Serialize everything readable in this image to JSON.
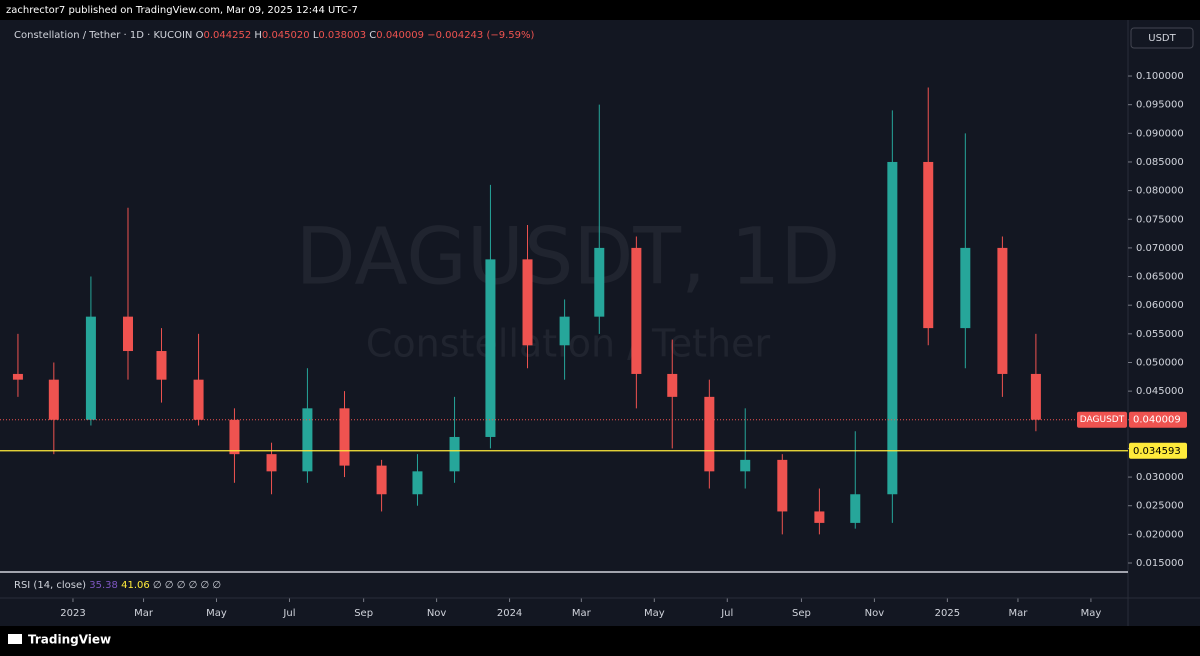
{
  "header": {
    "publisher": "zachrector7 published on TradingView.com, Mar 09, 2025 12:44 UTC-7",
    "footer": "TradingView",
    "currency_button": "USDT"
  },
  "chart_data": {
    "type": "candlestick",
    "title": "Constellation / Tether · 1D · KUCOIN",
    "legend": {
      "o_label": "O",
      "o": "0.044252",
      "h_label": "H",
      "h": "0.045020",
      "l_label": "L",
      "l": "0.038003",
      "c_label": "C",
      "c": "0.040009",
      "change": "−0.004243 (−9.59%)"
    },
    "watermark": {
      "symbol": "DAGUSDT, 1D",
      "name": "Constellation / Tether"
    },
    "x": [
      "2022-11",
      "2022-12",
      "2023-01",
      "2023-02",
      "2023-03",
      "2023-04",
      "2023-05",
      "2023-06",
      "2023-07",
      "2023-08",
      "2023-09",
      "2023-10",
      "2023-11",
      "2023-12",
      "2024-01",
      "2024-02",
      "2024-03",
      "2024-04",
      "2024-05",
      "2024-06",
      "2024-07",
      "2024-08",
      "2024-09",
      "2024-10",
      "2024-11",
      "2024-12",
      "2025-01",
      "2025-02",
      "2025-03"
    ],
    "open": [
      0.048,
      0.047,
      0.04,
      0.058,
      0.052,
      0.047,
      0.04,
      0.034,
      0.031,
      0.042,
      0.032,
      0.027,
      0.031,
      0.037,
      0.068,
      0.053,
      0.058,
      0.07,
      0.048,
      0.044,
      0.031,
      0.033,
      0.024,
      0.022,
      0.027,
      0.085,
      0.056,
      0.07,
      0.048
    ],
    "high": [
      0.055,
      0.05,
      0.065,
      0.077,
      0.056,
      0.055,
      0.042,
      0.036,
      0.049,
      0.045,
      0.033,
      0.034,
      0.044,
      0.081,
      0.074,
      0.061,
      0.095,
      0.072,
      0.054,
      0.047,
      0.042,
      0.034,
      0.028,
      0.038,
      0.094,
      0.098,
      0.09,
      0.072,
      0.055
    ],
    "low": [
      0.044,
      0.034,
      0.039,
      0.047,
      0.043,
      0.039,
      0.029,
      0.027,
      0.029,
      0.03,
      0.024,
      0.025,
      0.029,
      0.035,
      0.049,
      0.047,
      0.055,
      0.042,
      0.035,
      0.028,
      0.028,
      0.02,
      0.02,
      0.021,
      0.022,
      0.053,
      0.049,
      0.044,
      0.038
    ],
    "close": [
      0.047,
      0.04,
      0.058,
      0.052,
      0.047,
      0.04,
      0.034,
      0.031,
      0.042,
      0.032,
      0.027,
      0.031,
      0.037,
      0.068,
      0.053,
      0.058,
      0.07,
      0.048,
      0.044,
      0.031,
      0.033,
      0.024,
      0.022,
      0.027,
      0.085,
      0.056,
      0.07,
      0.048,
      0.040009
    ],
    "up_color": "#26a69a",
    "down_color": "#ef5350",
    "xlim": [
      "2022-11",
      "2025-06"
    ],
    "xticks": [
      {
        "value": "2023-01",
        "label": "2023"
      },
      {
        "value": "2023-03",
        "label": "Mar"
      },
      {
        "value": "2023-05",
        "label": "May"
      },
      {
        "value": "2023-07",
        "label": "Jul"
      },
      {
        "value": "2023-09",
        "label": "Sep"
      },
      {
        "value": "2023-11",
        "label": "Nov"
      },
      {
        "value": "2024-01",
        "label": "2024"
      },
      {
        "value": "2024-03",
        "label": "Mar"
      },
      {
        "value": "2024-05",
        "label": "May"
      },
      {
        "value": "2024-07",
        "label": "Jul"
      },
      {
        "value": "2024-09",
        "label": "Sep"
      },
      {
        "value": "2024-11",
        "label": "Nov"
      },
      {
        "value": "2025-01",
        "label": "2025"
      },
      {
        "value": "2025-03",
        "label": "Mar"
      },
      {
        "value": "2025-05",
        "label": "May"
      }
    ],
    "ylim": [
      0.01343,
      0.10943
    ],
    "yticks": [
      {
        "value": 0.015,
        "label": "0.015000"
      },
      {
        "value": 0.02,
        "label": "0.020000"
      },
      {
        "value": 0.025,
        "label": "0.025000"
      },
      {
        "value": 0.03,
        "label": "0.030000"
      },
      {
        "value": 0.035,
        "label": "0.035000"
      },
      {
        "value": 0.04,
        "label": "0.040000"
      },
      {
        "value": 0.045,
        "label": "0.045000"
      },
      {
        "value": 0.05,
        "label": "0.050000"
      },
      {
        "value": 0.055,
        "label": "0.055000"
      },
      {
        "value": 0.06,
        "label": "0.060000"
      },
      {
        "value": 0.065,
        "label": "0.065000"
      },
      {
        "value": 0.07,
        "label": "0.070000"
      },
      {
        "value": 0.075,
        "label": "0.075000"
      },
      {
        "value": 0.08,
        "label": "0.080000"
      },
      {
        "value": 0.085,
        "label": "0.085000"
      },
      {
        "value": 0.09,
        "label": "0.090000"
      },
      {
        "value": 0.095,
        "label": "0.095000"
      },
      {
        "value": 0.1,
        "label": "0.100000"
      }
    ],
    "price_line": {
      "label": "DAGUSDT",
      "value": 0.040009,
      "color": "#ef5350"
    },
    "level_line": {
      "value": 0.034593,
      "color": "#ffeb3b"
    },
    "rsi": {
      "label": "RSI (14, close)",
      "values": [
        35.38,
        41.06
      ],
      "rest": "∅ ∅ ∅ ∅ ∅ ∅",
      "colors": [
        "#7e57c2",
        "#ffeb3b"
      ]
    }
  }
}
